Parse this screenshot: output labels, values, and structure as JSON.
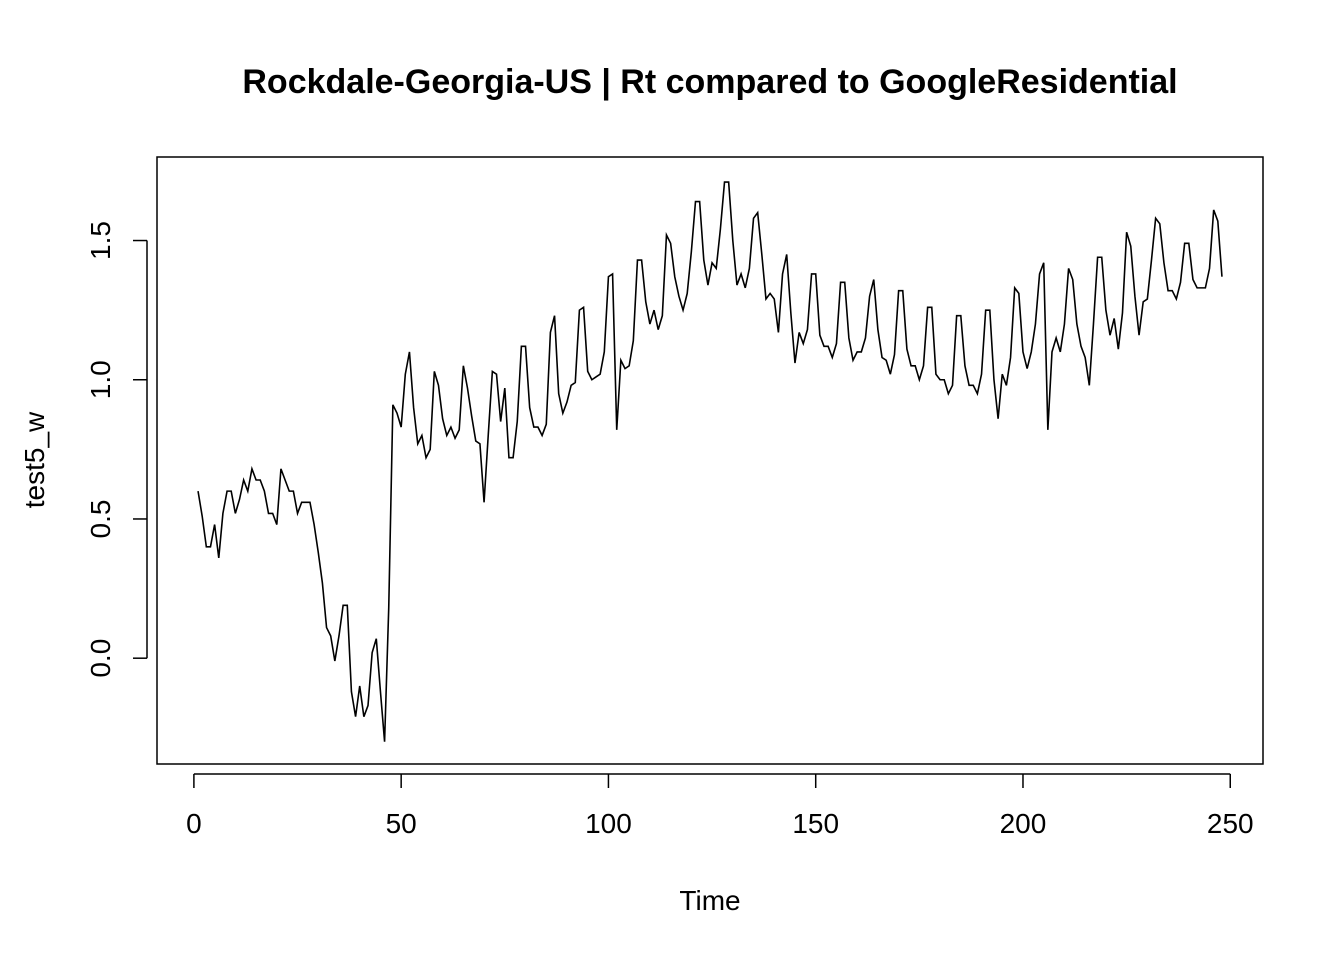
{
  "chart_data": {
    "type": "line",
    "title": "Rockdale-Georgia-US | Rt compared to GoogleResidential",
    "xlabel": "Time",
    "ylabel": "test5_w",
    "xlim": [
      -8.9,
      257.9
    ],
    "ylim": [
      -0.38,
      1.8
    ],
    "xticks": [
      0,
      50,
      100,
      150,
      200,
      250
    ],
    "yticks": [
      0.0,
      0.5,
      1.0,
      1.5
    ],
    "xtick_labels": [
      "0",
      "50",
      "100",
      "150",
      "200",
      "250"
    ],
    "ytick_labels": [
      "0.0",
      "0.5",
      "1.0",
      "1.5"
    ],
    "grid": false,
    "line_color": "#000000",
    "series": [
      {
        "x_start": 1,
        "x_step": 1,
        "values": [
          0.6,
          0.51,
          0.4,
          0.4,
          0.48,
          0.36,
          0.52,
          0.6,
          0.6,
          0.52,
          0.57,
          0.64,
          0.6,
          0.68,
          0.64,
          0.64,
          0.6,
          0.52,
          0.52,
          0.48,
          0.68,
          0.64,
          0.6,
          0.6,
          0.52,
          0.56,
          0.56,
          0.56,
          0.48,
          0.38,
          0.27,
          0.11,
          0.08,
          -0.01,
          0.08,
          0.19,
          0.19,
          -0.12,
          -0.21,
          -0.1,
          -0.21,
          -0.17,
          0.02,
          0.07,
          -0.12,
          -0.3,
          0.18,
          0.91,
          0.88,
          0.83,
          1.02,
          1.1,
          0.9,
          0.77,
          0.8,
          0.72,
          0.75,
          1.03,
          0.98,
          0.86,
          0.8,
          0.83,
          0.79,
          0.82,
          1.05,
          0.97,
          0.87,
          0.78,
          0.77,
          0.56,
          0.8,
          1.03,
          1.02,
          0.85,
          0.97,
          0.72,
          0.72,
          0.85,
          1.12,
          1.12,
          0.9,
          0.83,
          0.83,
          0.8,
          0.84,
          1.17,
          1.23,
          0.95,
          0.88,
          0.92,
          0.98,
          0.99,
          1.25,
          1.26,
          1.03,
          1.0,
          1.01,
          1.02,
          1.1,
          1.37,
          1.38,
          0.82,
          1.07,
          1.04,
          1.05,
          1.14,
          1.43,
          1.43,
          1.28,
          1.2,
          1.25,
          1.18,
          1.23,
          1.52,
          1.49,
          1.37,
          1.3,
          1.25,
          1.31,
          1.46,
          1.64,
          1.64,
          1.43,
          1.34,
          1.42,
          1.4,
          1.54,
          1.71,
          1.71,
          1.5,
          1.34,
          1.38,
          1.33,
          1.4,
          1.58,
          1.6,
          1.45,
          1.29,
          1.31,
          1.29,
          1.17,
          1.38,
          1.45,
          1.24,
          1.06,
          1.17,
          1.13,
          1.18,
          1.38,
          1.38,
          1.16,
          1.12,
          1.12,
          1.08,
          1.13,
          1.35,
          1.35,
          1.15,
          1.07,
          1.1,
          1.1,
          1.15,
          1.3,
          1.36,
          1.18,
          1.08,
          1.07,
          1.02,
          1.09,
          1.32,
          1.32,
          1.11,
          1.05,
          1.05,
          1.0,
          1.05,
          1.26,
          1.26,
          1.02,
          1.0,
          1.0,
          0.95,
          0.98,
          1.23,
          1.23,
          1.05,
          0.98,
          0.98,
          0.95,
          1.02,
          1.25,
          1.25,
          1.0,
          0.86,
          1.02,
          0.98,
          1.08,
          1.33,
          1.31,
          1.1,
          1.04,
          1.1,
          1.2,
          1.38,
          1.42,
          0.82,
          1.1,
          1.15,
          1.1,
          1.2,
          1.4,
          1.36,
          1.2,
          1.12,
          1.08,
          0.98,
          1.2,
          1.44,
          1.44,
          1.25,
          1.16,
          1.22,
          1.11,
          1.24,
          1.53,
          1.48,
          1.3,
          1.16,
          1.28,
          1.29,
          1.43,
          1.58,
          1.56,
          1.42,
          1.32,
          1.32,
          1.29,
          1.35,
          1.49,
          1.49,
          1.36,
          1.33,
          1.33,
          1.33,
          1.4,
          1.61,
          1.57,
          1.37
        ]
      }
    ]
  }
}
